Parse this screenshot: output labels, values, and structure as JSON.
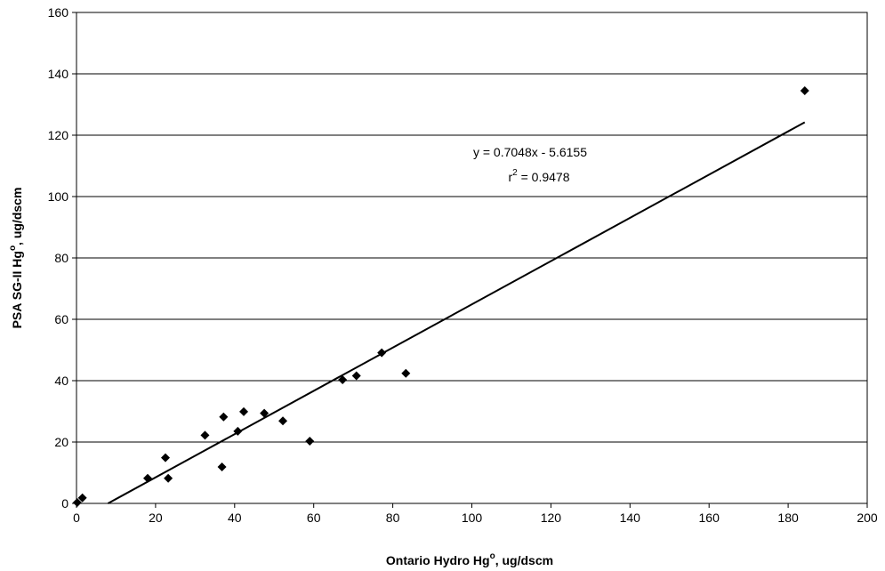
{
  "chart_data": {
    "type": "scatter",
    "xlabel": "Ontario Hydro Hg",
    "xlabel_sup": "o",
    "xlabel_unit": ", ug/dscm",
    "ylabel": "PSA SG-II Hg",
    "ylabel_sup": "o",
    "ylabel_unit": ", ug/dscm",
    "xlim": [
      0,
      200
    ],
    "ylim": [
      0,
      160
    ],
    "xticks": [
      0,
      20,
      40,
      60,
      80,
      100,
      120,
      140,
      160,
      180,
      200
    ],
    "yticks": [
      0,
      20,
      40,
      60,
      80,
      100,
      120,
      140,
      160
    ],
    "grid": "horizontal",
    "marker": "diamond",
    "marker_color": "#000000",
    "points": [
      {
        "x": 0.2,
        "y": 0.3
      },
      {
        "x": 1.5,
        "y": 1.8
      },
      {
        "x": 18,
        "y": 8.2
      },
      {
        "x": 22.5,
        "y": 14.9
      },
      {
        "x": 23.2,
        "y": 8.2
      },
      {
        "x": 32.5,
        "y": 22.2
      },
      {
        "x": 36.8,
        "y": 11.9
      },
      {
        "x": 37.2,
        "y": 28.2
      },
      {
        "x": 40.8,
        "y": 23.5
      },
      {
        "x": 42.3,
        "y": 29.9
      },
      {
        "x": 47.5,
        "y": 29.4
      },
      {
        "x": 52.2,
        "y": 26.9
      },
      {
        "x": 59,
        "y": 20.3
      },
      {
        "x": 67.3,
        "y": 40.3
      },
      {
        "x": 70.8,
        "y": 41.6
      },
      {
        "x": 77.2,
        "y": 49.1
      },
      {
        "x": 83.3,
        "y": 42.4
      },
      {
        "x": 184.2,
        "y": 134.5
      }
    ],
    "trendline": {
      "slope": 0.7048,
      "intercept": -5.6155,
      "x_end": 184.2,
      "equation": "y = 0.7048x - 5.6155",
      "r2_prefix": "r",
      "r2_sup": "2",
      "r2_value": " = 0.9478"
    }
  }
}
